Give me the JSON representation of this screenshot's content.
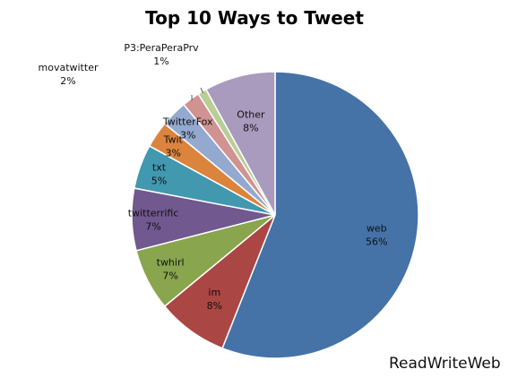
{
  "chart_data": {
    "type": "pie",
    "title": "Top 10 Ways to Tweet",
    "categories": [
      "web",
      "im",
      "twhirl",
      "twitterrific",
      "txt",
      "Twit",
      "TwitterFox",
      "movatwitter",
      "P3:PeraPeraPrv",
      "Other"
    ],
    "values": [
      56,
      8,
      7,
      7,
      5,
      3,
      3,
      2,
      1,
      8
    ],
    "labels": [
      "56%",
      "8%",
      "7%",
      "7%",
      "5%",
      "3%",
      "3%",
      "2%",
      "1%",
      "8%"
    ],
    "colors": [
      "#4572a7",
      "#aa4643",
      "#89a54e",
      "#71588f",
      "#4198af",
      "#db843d",
      "#93a9cf",
      "#d19392",
      "#b9cd96",
      "#a99bbd"
    ],
    "legend": "none"
  },
  "footer": {
    "watermark": "ReadWriteWeb"
  }
}
